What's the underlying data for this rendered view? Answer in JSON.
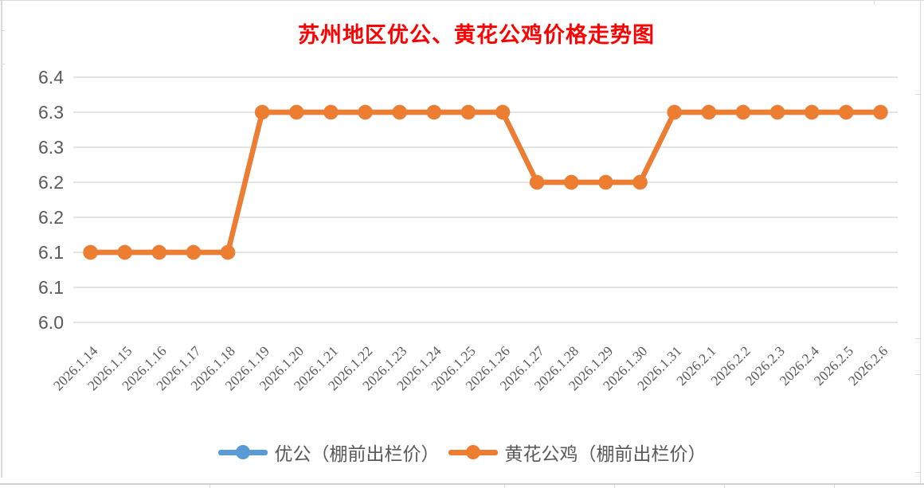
{
  "chart_data": {
    "type": "line",
    "title": "苏州地区优公、黄花公鸡价格走势图",
    "title_color": "#ff0000",
    "xlabel": "",
    "ylabel": "",
    "categories": [
      "2026.1.14",
      "2026.1.15",
      "2026.1.16",
      "2026.1.17",
      "2026.1.18",
      "2026.1.19",
      "2026.1.20",
      "2026.1.21",
      "2026.1.22",
      "2026.1.23",
      "2026.1.24",
      "2026.1.25",
      "2026.1.26",
      "2026.1.27",
      "2026.1.28",
      "2026.1.29",
      "2026.1.30",
      "2026.1.31",
      "2026.2.1",
      "2026.2.2",
      "2026.2.3",
      "2026.2.4",
      "2026.2.5",
      "2026.2.6"
    ],
    "series": [
      {
        "name": "优公（棚前出栏价）",
        "color": "#5b9bd5",
        "values": [
          6.1,
          6.1,
          6.1,
          6.1,
          6.1,
          6.3,
          6.3,
          6.3,
          6.3,
          6.3,
          6.3,
          6.3,
          6.3,
          6.2,
          6.2,
          6.2,
          6.2,
          6.3,
          6.3,
          6.3,
          6.3,
          6.3,
          6.3,
          6.3
        ],
        "fully_overlapped_by_next_series": true
      },
      {
        "name": "黄花公鸡（棚前出栏价）",
        "color": "#ed7d31",
        "values": [
          6.1,
          6.1,
          6.1,
          6.1,
          6.1,
          6.3,
          6.3,
          6.3,
          6.3,
          6.3,
          6.3,
          6.3,
          6.3,
          6.2,
          6.2,
          6.2,
          6.2,
          6.3,
          6.3,
          6.3,
          6.3,
          6.3,
          6.3,
          6.3
        ]
      }
    ],
    "y_axis": {
      "min": 6.0,
      "max": 6.35,
      "step": 0.05,
      "tick_labels_bottom_to_top": [
        "6.0",
        "6.1",
        "6.1",
        "6.2",
        "6.2",
        "6.3",
        "6.3",
        "6.4"
      ]
    },
    "x_tick_rotation_deg": 45,
    "grid": true,
    "legend_position": "bottom",
    "axis_text_color": "#595959",
    "gridline_color": "#dcdcdc"
  }
}
